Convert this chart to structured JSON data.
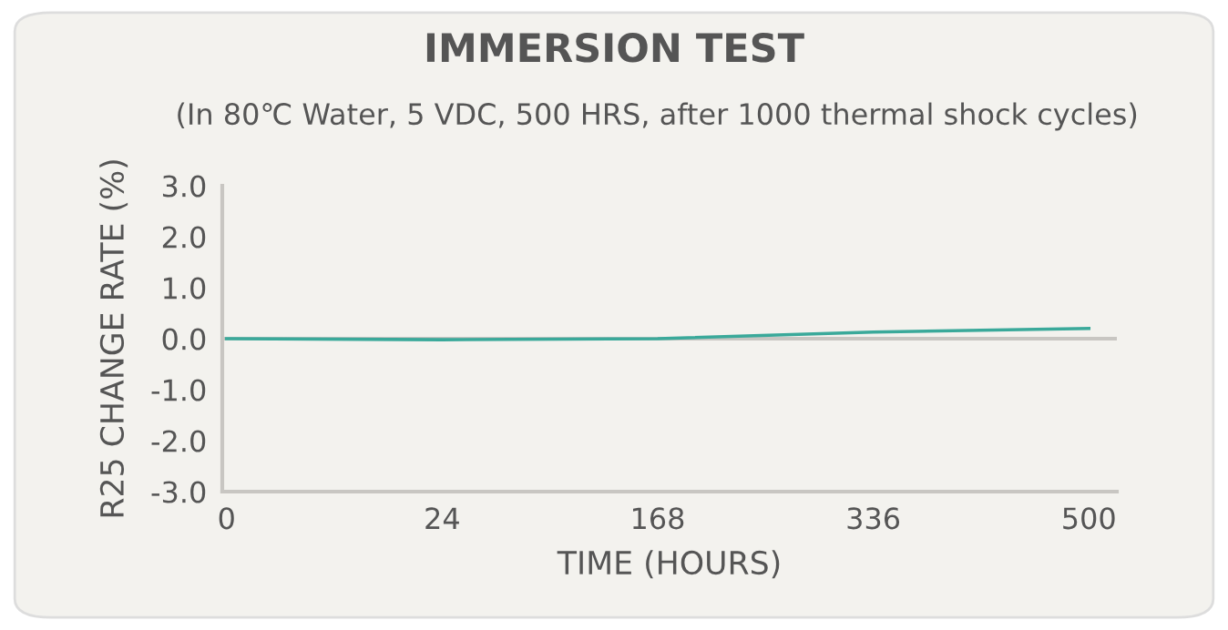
{
  "chart_data": {
    "type": "line",
    "title": "IMMERSION TEST",
    "subtitle": "(In 80℃ Water, 5 VDC, 500 HRS, after 1000 thermal shock cycles)",
    "xlabel": "TIME (HOURS)",
    "ylabel": "R25 CHANGE RATE (%)",
    "categories": [
      "0",
      "24",
      "168",
      "336",
      "500"
    ],
    "series": [
      {
        "color": "#3aa99a",
        "values": [
          0.0,
          -0.02,
          0.0,
          0.13,
          0.2
        ]
      }
    ],
    "ylim": [
      -3.0,
      3.0
    ],
    "yticks": [
      {
        "value": -3,
        "label": "-3.0"
      },
      {
        "value": -2,
        "label": "-2.0"
      },
      {
        "value": -1,
        "label": "-1.0"
      },
      {
        "value": 0,
        "label": "0.0"
      },
      {
        "value": 1,
        "label": "1.0"
      },
      {
        "value": 2,
        "label": "2.0"
      },
      {
        "value": 3,
        "label": "3.0"
      }
    ],
    "ref_lines": [
      {
        "axis": "y",
        "value": 0,
        "color": "#c8c6c2"
      }
    ],
    "grid": false,
    "marker": "none",
    "line_style": "solid"
  }
}
